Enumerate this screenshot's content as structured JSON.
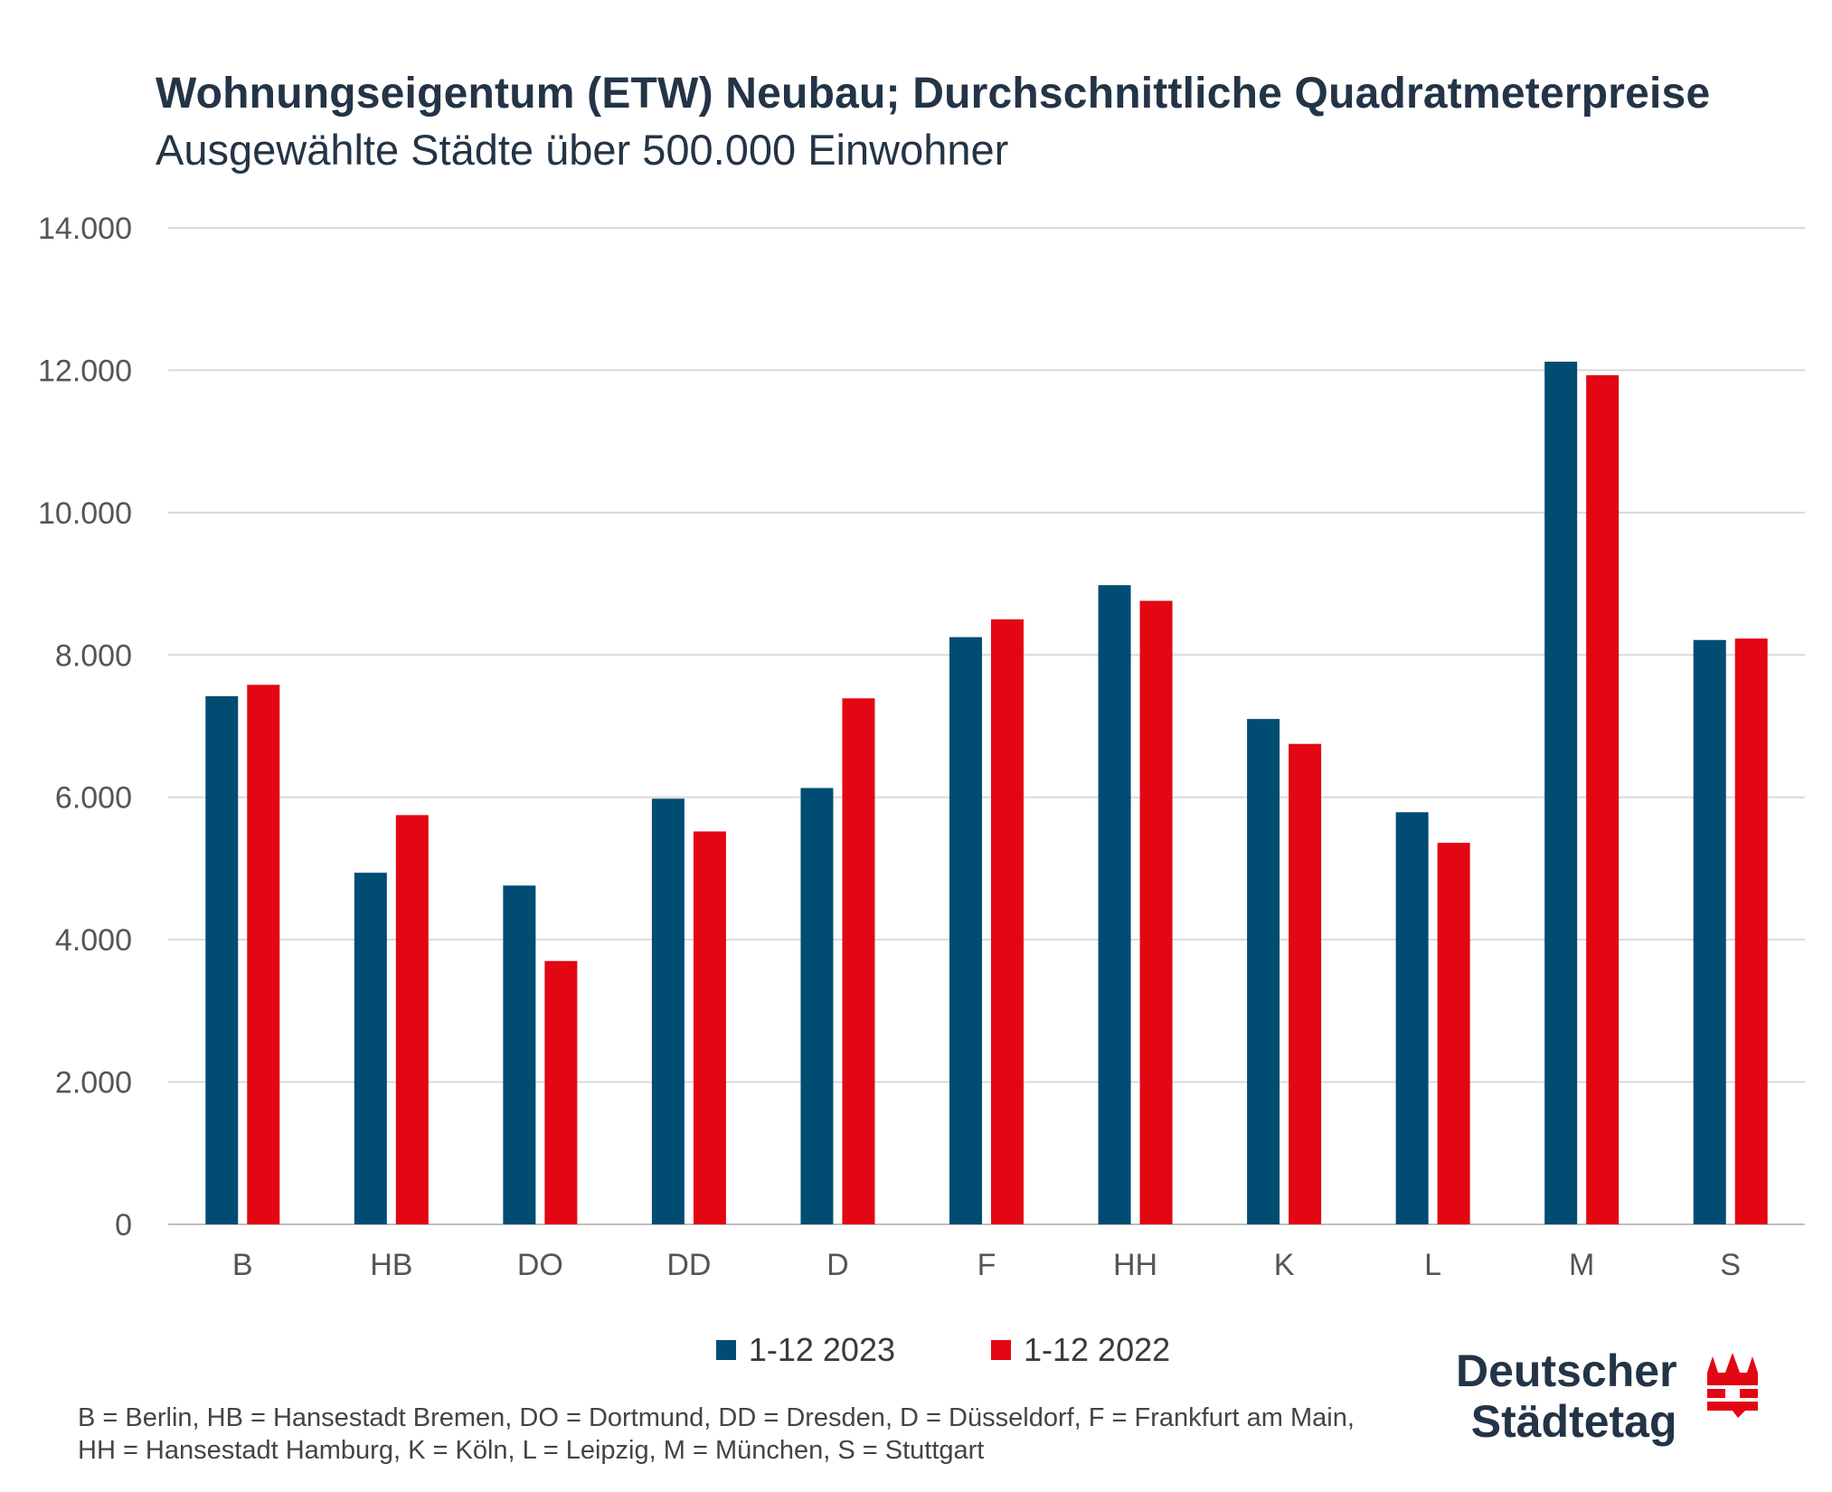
{
  "header": {
    "title": "Wohnungseigentum (ETW) Neubau; Durchschnittliche Quadratmeterpreise",
    "subtitle": "Ausgewählte Städte über 500.000 Einwohner"
  },
  "chart_data": {
    "type": "bar",
    "categories": [
      "B",
      "HB",
      "DO",
      "DD",
      "D",
      "F",
      "HH",
      "K",
      "L",
      "M",
      "S"
    ],
    "series": [
      {
        "name": "1-12 2023",
        "color": "#004c73",
        "values": [
          7420,
          4940,
          4760,
          5980,
          6130,
          8250,
          8980,
          7100,
          5790,
          12120,
          8210
        ]
      },
      {
        "name": "1-12 2022",
        "color": "#e30613",
        "values": [
          7580,
          5750,
          3700,
          5520,
          7390,
          8500,
          8760,
          6750,
          5360,
          11930,
          8230
        ]
      }
    ],
    "ylim": [
      0,
      14000
    ],
    "yticks": [
      0,
      2000,
      4000,
      6000,
      8000,
      10000,
      12000,
      14000
    ],
    "ytick_labels": [
      "0",
      "2.000",
      "4.000",
      "6.000",
      "8.000",
      "10.000",
      "12.000",
      "14.000"
    ],
    "grid": true,
    "legend": "bottom-center"
  },
  "footnote": {
    "line1": "B = Berlin, HB = Hansestadt Bremen, DO = Dortmund, DD = Dresden, D = Düsseldorf, F = Frankfurt am Main,",
    "line2": "HH = Hansestadt Hamburg, K = Köln, L = Leipzig, M = München, S = Stuttgart"
  },
  "logo": {
    "line1": "Deutscher",
    "line2": "Städtetag",
    "mark_color": "#e30613"
  }
}
